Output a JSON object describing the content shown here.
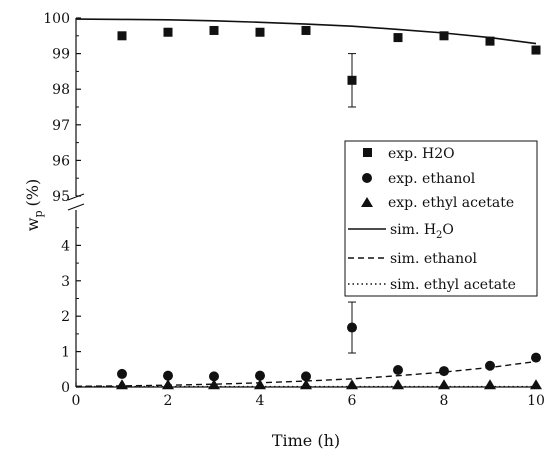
{
  "chart_data": {
    "type": "scatter",
    "title": "",
    "xlabel": "Time (h)",
    "ylabel_main": "w",
    "ylabel_sub": "p",
    "ylabel_unit": "(%)",
    "xlim": [
      0,
      10
    ],
    "x_ticks": [
      "0",
      "2",
      "4",
      "6",
      "8",
      "10"
    ],
    "axis_break": true,
    "lower_ylim": [
      0,
      5
    ],
    "upper_ylim": [
      95,
      100
    ],
    "lower_y_ticks": [
      "0",
      "1",
      "2",
      "3",
      "4"
    ],
    "upper_y_ticks": [
      "95",
      "96",
      "97",
      "98",
      "99",
      "100"
    ],
    "grid": false,
    "legend_position": "right",
    "experimental_series": [
      {
        "name": "exp. H2O",
        "marker": "square",
        "x": [
          1,
          2,
          3,
          4,
          5,
          6,
          7,
          8,
          9,
          10
        ],
        "y": [
          99.5,
          99.6,
          99.65,
          99.6,
          99.65,
          98.25,
          99.45,
          99.5,
          99.35,
          99.1
        ],
        "error": [
          0,
          0,
          0,
          0,
          0,
          0.75,
          0,
          0,
          0,
          0
        ]
      },
      {
        "name": "exp. ethanol",
        "marker": "circle",
        "x": [
          1,
          2,
          3,
          4,
          5,
          6,
          7,
          8,
          9,
          10
        ],
        "y": [
          0.37,
          0.32,
          0.3,
          0.32,
          0.3,
          1.68,
          0.48,
          0.45,
          0.6,
          0.83
        ],
        "error": [
          0,
          0,
          0,
          0,
          0,
          0.72,
          0,
          0,
          0,
          0
        ]
      },
      {
        "name": "exp. ethyl acetate",
        "marker": "triangle",
        "x": [
          1,
          2,
          3,
          4,
          5,
          6,
          7,
          8,
          9,
          10
        ],
        "y": [
          0.05,
          0.05,
          0.05,
          0.05,
          0.05,
          0.05,
          0.05,
          0.05,
          0.05,
          0.05
        ],
        "error": [
          0,
          0,
          0,
          0,
          0,
          0,
          0,
          0,
          0,
          0
        ]
      }
    ],
    "simulated_series": [
      {
        "name_main": "sim. H",
        "name_sub": "2",
        "name_tail": "O",
        "style": "solid",
        "x": [
          0,
          1,
          2,
          3,
          4,
          5,
          6,
          7,
          8,
          9,
          10
        ],
        "y": [
          99.97,
          99.96,
          99.95,
          99.92,
          99.88,
          99.83,
          99.77,
          99.68,
          99.58,
          99.45,
          99.28
        ]
      },
      {
        "name": "sim. ethanol",
        "style": "dashed",
        "x": [
          0,
          1,
          2,
          3,
          4,
          5,
          6,
          7,
          8,
          9,
          10
        ],
        "y": [
          0.02,
          0.03,
          0.05,
          0.08,
          0.12,
          0.17,
          0.23,
          0.32,
          0.42,
          0.55,
          0.72
        ]
      },
      {
        "name": "sim. ethyl acetate",
        "style": "dotted",
        "x": [
          0,
          1,
          2,
          3,
          4,
          5,
          6,
          7,
          8,
          9,
          10
        ],
        "y": [
          0.01,
          0.01,
          0.01,
          0.01,
          0.01,
          0.01,
          0.01,
          0.01,
          0.01,
          0.01,
          0.01
        ]
      }
    ]
  }
}
